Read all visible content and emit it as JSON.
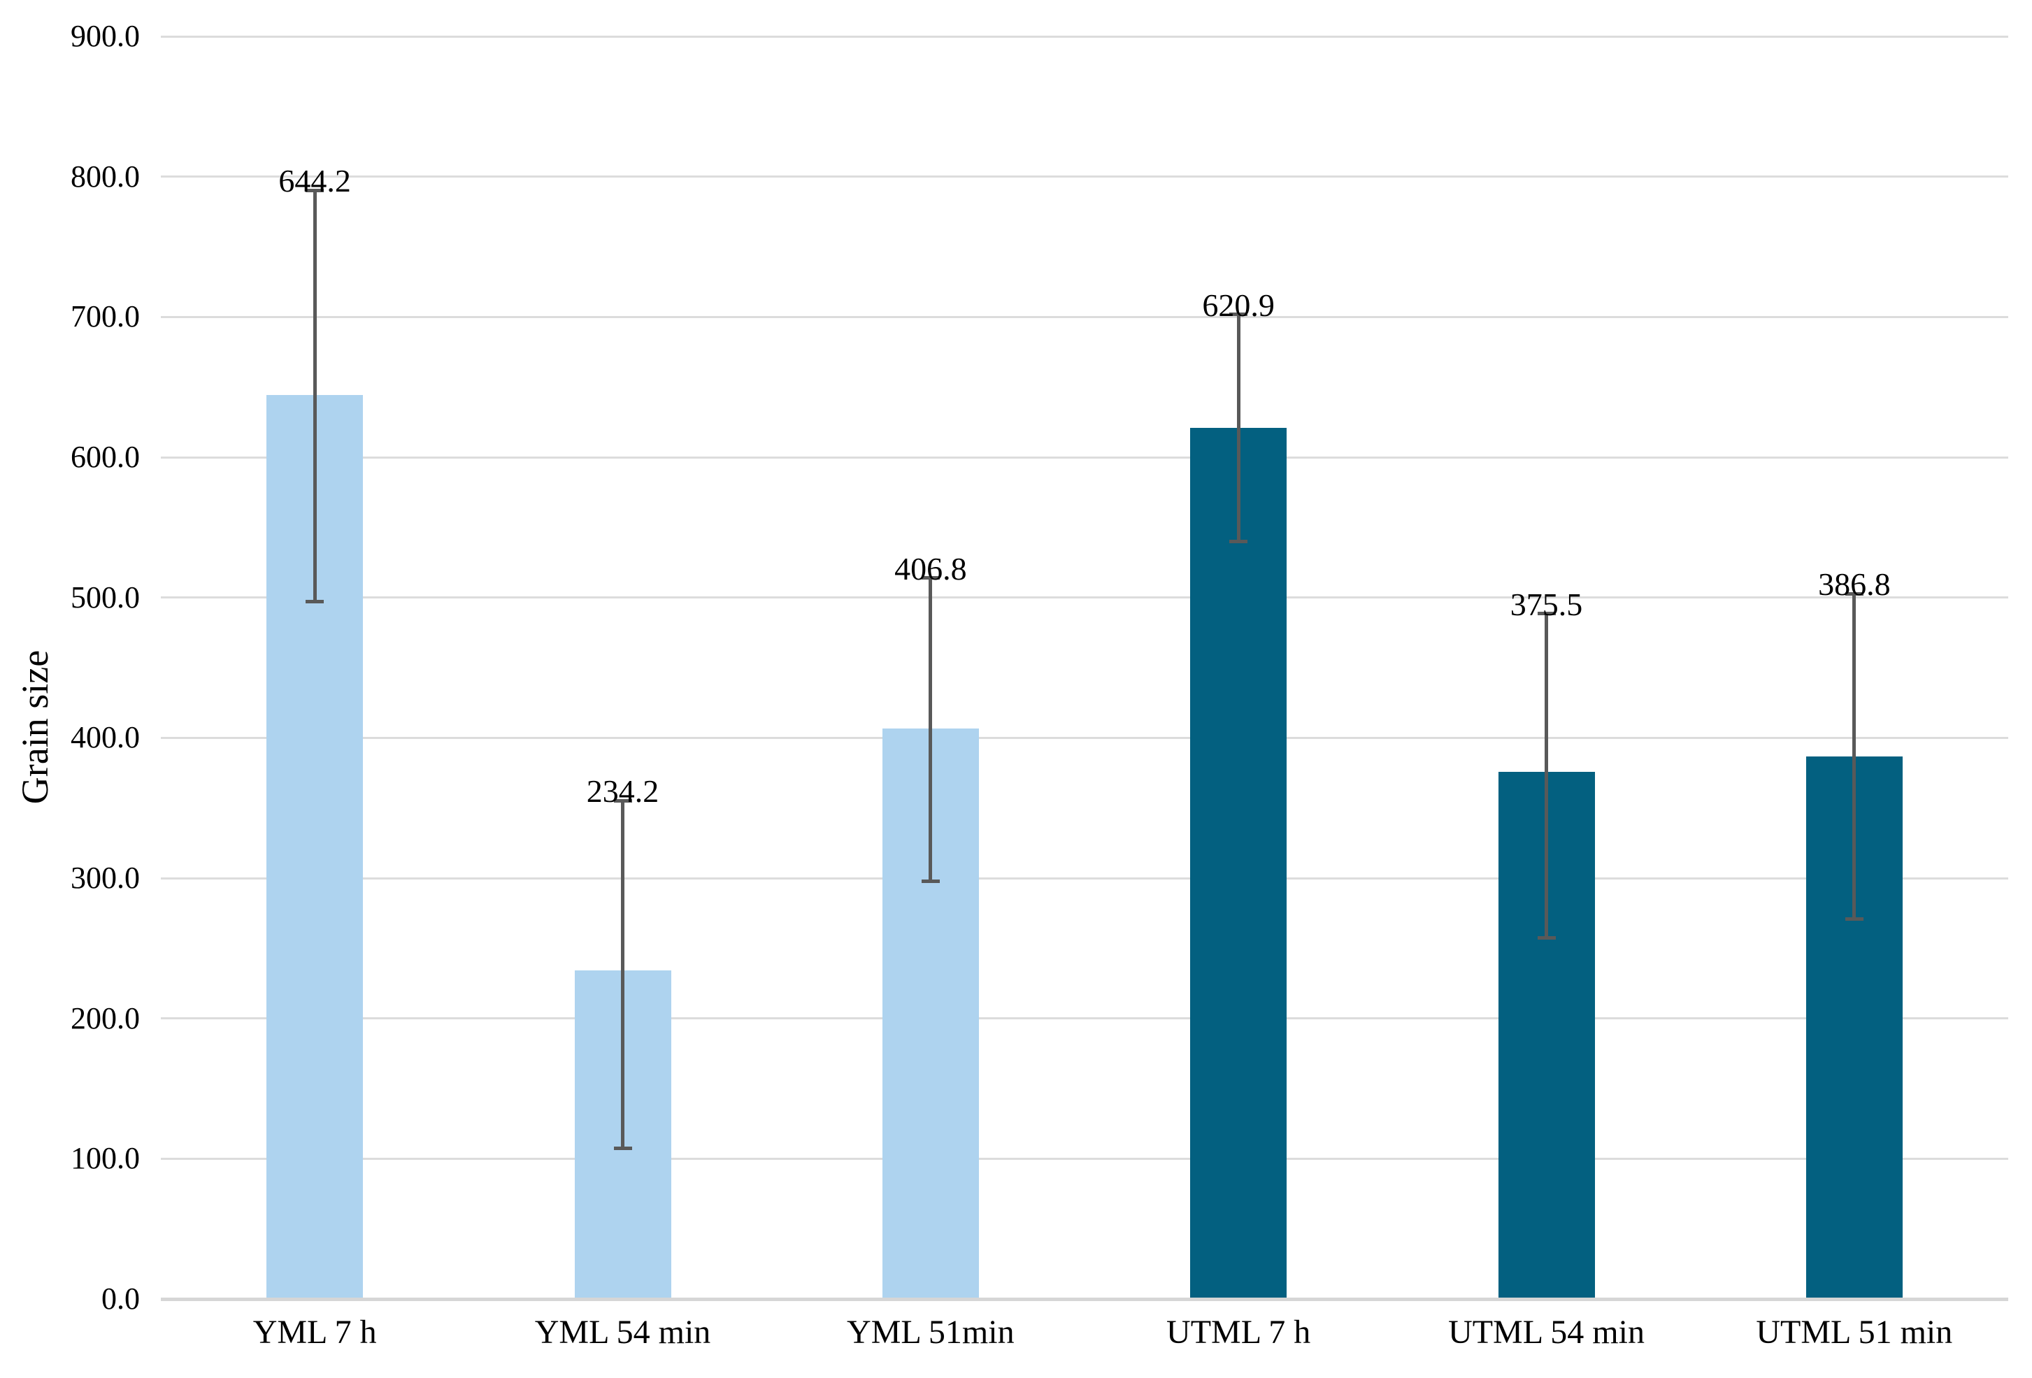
{
  "chart_data": {
    "type": "bar",
    "title": "",
    "ylabel": "Grain size",
    "xlabel": "",
    "ylim": [
      0,
      900
    ],
    "ytick_step": 100,
    "ytick_labels": [
      "0.0",
      "100.0",
      "200.0",
      "300.0",
      "400.0",
      "500.0",
      "600.0",
      "700.0",
      "800.0",
      "900.0"
    ],
    "grid": true,
    "legend_position": "none",
    "categories": [
      "YML 7 h",
      "YML 54 min",
      "YML 51min",
      "UTML 7 h",
      "UTML 54 min",
      "UTML 51 min"
    ],
    "values": [
      644.2,
      234.2,
      406.8,
      620.9,
      375.5,
      386.8
    ],
    "data_labels": [
      "644.2",
      "234.2",
      "406.8",
      "620.9",
      "375.5",
      "386.8"
    ],
    "error_plus": [
      146,
      121,
      107,
      81,
      113,
      116
    ],
    "error_minus": [
      147,
      127,
      109,
      81,
      118,
      116
    ],
    "bar_colors": [
      "#AED3EF",
      "#AED3EF",
      "#AED3EF",
      "#036080",
      "#036080",
      "#036080"
    ],
    "colors": {
      "light_series": "#AED3EF",
      "dark_series": "#036080",
      "gridline": "#DCDCDC",
      "axis_line": "#D6D6D6",
      "error_bar": "#595959",
      "text": "#000000"
    }
  }
}
